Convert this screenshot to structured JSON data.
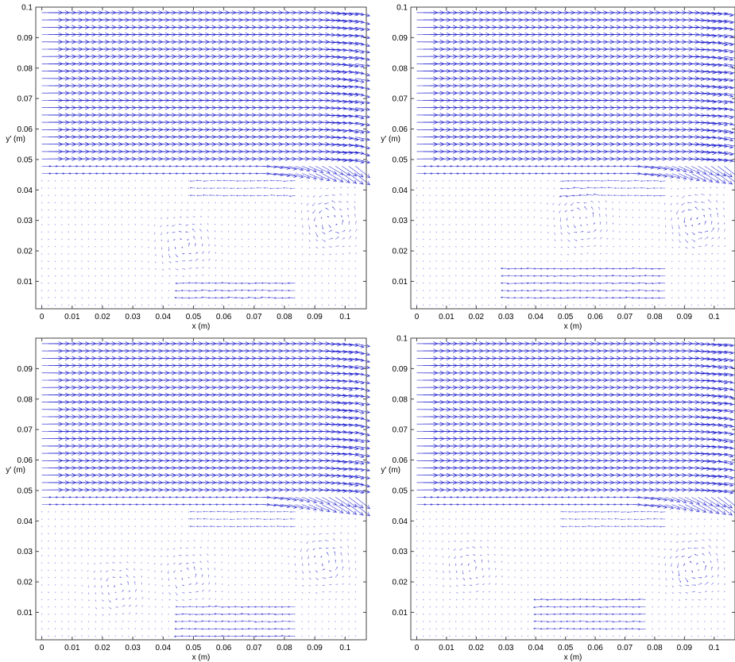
{
  "chart_data": [
    {
      "type": "quiver",
      "panel": "top-left",
      "xlabel": "x (m)",
      "ylabel": "y' (m)",
      "xlim": [
        -0.002,
        0.107
      ],
      "ylim": [
        0.001,
        0.1
      ],
      "xticks": [
        "0",
        "0.01",
        "0.02",
        "0.03",
        "0.04",
        "0.05",
        "0.06",
        "0.07",
        "0.08",
        "0.09",
        "0.1"
      ],
      "yticks": [
        "0.01",
        "0.02",
        "0.03",
        "0.04",
        "0.05",
        "0.06",
        "0.07",
        "0.08",
        "0.09",
        "0.1"
      ],
      "jet": {
        "x_start": 0.007,
        "y_bottom": 0.05,
        "y_top": 0.099
      },
      "vortices": [
        {
          "x": 0.095,
          "y": 0.03,
          "strength": 0.7
        },
        {
          "x": 0.047,
          "y": 0.022,
          "strength": 0.6
        }
      ],
      "bottom_streams": [
        {
          "x0": 0.045,
          "x1": 0.085,
          "y0": 0.003,
          "y1": 0.011
        }
      ],
      "arrow_color": "#1a1acc"
    },
    {
      "type": "quiver",
      "panel": "top-right",
      "xlabel": "x (m)",
      "ylabel": "y' (m)",
      "xlim": [
        -0.002,
        0.107
      ],
      "ylim": [
        0.001,
        0.1
      ],
      "xticks": [
        "0",
        "0.01",
        "0.02",
        "0.03",
        "0.04",
        "0.05",
        "0.06",
        "0.07",
        "0.08",
        "0.09",
        "0.1"
      ],
      "yticks": [
        "0.01",
        "0.02",
        "0.03",
        "0.04",
        "0.05",
        "0.06",
        "0.07",
        "0.08",
        "0.09",
        "0.1"
      ],
      "jet": {
        "x_start": 0.007,
        "y_bottom": 0.05,
        "y_top": 0.099
      },
      "vortices": [
        {
          "x": 0.094,
          "y": 0.03,
          "strength": 0.7
        },
        {
          "x": 0.055,
          "y": 0.03,
          "strength": 0.6
        }
      ],
      "bottom_streams": [
        {
          "x0": 0.03,
          "x1": 0.085,
          "y0": 0.003,
          "y1": 0.016
        }
      ],
      "arrow_color": "#1a1acc"
    },
    {
      "type": "quiver",
      "panel": "bottom-left",
      "xlabel": "x (m)",
      "ylabel": "y' (m)",
      "xlim": [
        -0.002,
        0.107
      ],
      "ylim": [
        0.001,
        0.1
      ],
      "xticks": [
        "0",
        "0.01",
        "0.02",
        "0.03",
        "0.04",
        "0.05",
        "0.06",
        "0.07",
        "0.08",
        "0.09",
        "0.1"
      ],
      "yticks": [
        "0.01",
        "0.02",
        "0.03",
        "0.04",
        "0.05",
        "0.06",
        "0.07",
        "0.08",
        "0.09"
      ],
      "jet": {
        "x_start": 0.007,
        "y_bottom": 0.05,
        "y_top": 0.099
      },
      "vortices": [
        {
          "x": 0.093,
          "y": 0.027,
          "strength": 0.6
        },
        {
          "x": 0.025,
          "y": 0.018,
          "strength": 0.5
        },
        {
          "x": 0.048,
          "y": 0.022,
          "strength": 0.5
        }
      ],
      "bottom_streams": [
        {
          "x0": 0.045,
          "x1": 0.085,
          "y0": 0.002,
          "y1": 0.012
        }
      ],
      "arrow_color": "#1a1acc"
    },
    {
      "type": "quiver",
      "panel": "bottom-right",
      "xlabel": "x (m)",
      "ylabel": "y' (m)",
      "xlim": [
        -0.002,
        0.107
      ],
      "ylim": [
        0.001,
        0.1
      ],
      "xticks": [
        "0",
        "0.01",
        "0.02",
        "0.03",
        "0.04",
        "0.05",
        "0.06",
        "0.07",
        "0.08",
        "0.09",
        "0.1"
      ],
      "yticks": [
        "0.01",
        "0.02",
        "0.03",
        "0.04",
        "0.05",
        "0.06",
        "0.07",
        "0.08",
        "0.09",
        "0.1"
      ],
      "jet": {
        "x_start": 0.007,
        "y_bottom": 0.05,
        "y_top": 0.099
      },
      "vortices": [
        {
          "x": 0.093,
          "y": 0.025,
          "strength": 0.7
        },
        {
          "x": 0.018,
          "y": 0.025,
          "strength": 0.5
        }
      ],
      "bottom_streams": [
        {
          "x0": 0.04,
          "x1": 0.078,
          "y0": 0.003,
          "y1": 0.015
        }
      ],
      "arrow_color": "#1a1acc"
    }
  ]
}
